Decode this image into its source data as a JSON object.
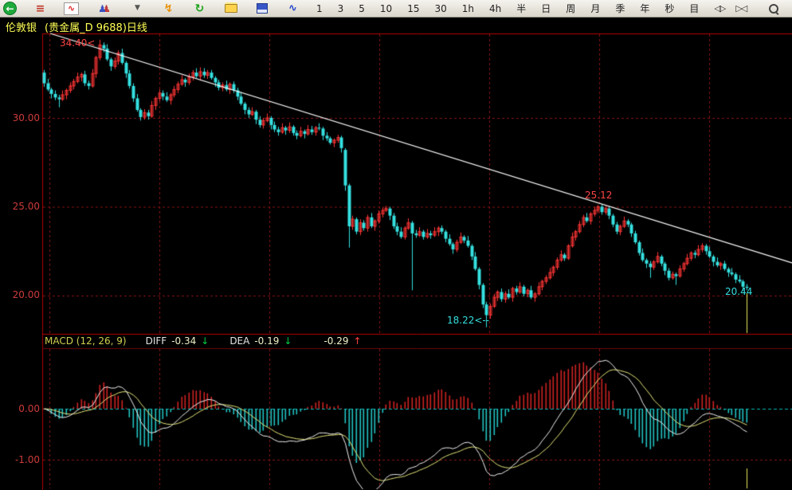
{
  "toolbar": {
    "icons": [
      {
        "name": "back-icon",
        "glyph": "←"
      },
      {
        "name": "quote-list-icon",
        "glyph": "≡"
      },
      {
        "name": "kline-chart-icon",
        "glyph": "∿"
      },
      {
        "name": "users-icon",
        "glyph": "♟"
      },
      {
        "name": "dropdown-arrow-icon",
        "glyph": "▼"
      },
      {
        "name": "lightning-icon",
        "glyph": "↯"
      },
      {
        "name": "refresh-icon",
        "glyph": "↻"
      },
      {
        "name": "open-folder-icon",
        "glyph": ""
      },
      {
        "name": "save-icon",
        "glyph": ""
      },
      {
        "name": "trendline-tool-icon",
        "glyph": "∿"
      }
    ],
    "periods": [
      "1",
      "3",
      "5",
      "10",
      "15",
      "30",
      "1h",
      "4h",
      "半",
      "日",
      "周",
      "月",
      "季",
      "年",
      "秒",
      "目"
    ],
    "nav_buttons": [
      "◁▷",
      "▷◁"
    ],
    "search_icon": "magnifier-icon"
  },
  "title_bar": {
    "symbol": "伦敦银",
    "detail": "(贵金属_D 9688)日线"
  },
  "main_chart": {
    "y_axis_labels": [
      "30.00",
      "25.00",
      "20.00"
    ],
    "markers": [
      {
        "text": "34.40<",
        "color": "#ff4545"
      },
      {
        "text": "25.12",
        "color": "#ff4545"
      },
      {
        "text": "18.22<--",
        "color": "#35dede"
      },
      {
        "text": "20.44",
        "color": "#35dede"
      }
    ]
  },
  "macd_panel": {
    "label": "MACD (12, 26, 9)",
    "diff_label": "DIFF",
    "diff_value": "-0.34",
    "diff_arrow": "↓",
    "dea_label": "DEA",
    "dea_value": "-0.19",
    "dea_arrow": "↓",
    "bar_value": "-0.29",
    "bar_arrow": "↑",
    "y_axis_labels": [
      "0.00",
      "-1.00"
    ]
  },
  "chart_data": {
    "type": "candlestick",
    "title": "伦敦银 (贵金属_D 9688) 日线",
    "price_y_ticks": [
      30,
      25,
      20
    ],
    "all_time_high": 34.4,
    "swing_high": 25.12,
    "period_low": 18.22,
    "last_price": 20.44,
    "overlays": [
      {
        "type": "trendline",
        "points": [
          [
            63,
            42
          ],
          [
            994,
            330
          ]
        ]
      }
    ],
    "indicator": {
      "name": "MACD",
      "params": [
        12,
        26,
        9
      ],
      "diff": -0.34,
      "dea": -0.19,
      "bar": -0.29,
      "y_ticks": [
        0,
        -1
      ]
    },
    "ohlc": [
      [
        32.55,
        32.7,
        31.75,
        31.95
      ],
      [
        31.95,
        32.2,
        31.5,
        31.6
      ],
      [
        31.6,
        31.7,
        31.1,
        31.35
      ],
      [
        31.35,
        31.55,
        31.0,
        31.15
      ],
      [
        31.15,
        31.3,
        30.6,
        31.05
      ],
      [
        31.05,
        31.55,
        30.95,
        31.3
      ],
      [
        31.3,
        31.65,
        31.05,
        31.55
      ],
      [
        31.55,
        32.0,
        31.4,
        31.8
      ],
      [
        31.8,
        32.2,
        31.6,
        32.05
      ],
      [
        32.05,
        32.55,
        31.95,
        32.3
      ],
      [
        32.3,
        32.55,
        32.05,
        32.45
      ],
      [
        32.45,
        32.65,
        31.8,
        31.95
      ],
      [
        31.95,
        32.1,
        31.6,
        31.8
      ],
      [
        31.8,
        32.75,
        31.7,
        32.5
      ],
      [
        32.5,
        33.5,
        32.25,
        33.4
      ],
      [
        33.4,
        34.4,
        33.25,
        34.1
      ],
      [
        34.1,
        34.25,
        33.7,
        33.9
      ],
      [
        33.9,
        34.15,
        33.2,
        33.3
      ],
      [
        33.3,
        33.4,
        32.65,
        32.9
      ],
      [
        32.9,
        33.4,
        32.75,
        33.2
      ],
      [
        33.2,
        33.8,
        33.0,
        33.65
      ],
      [
        33.65,
        33.9,
        33.0,
        33.1
      ],
      [
        33.1,
        33.2,
        32.25,
        32.5
      ],
      [
        32.5,
        32.7,
        31.65,
        31.8
      ],
      [
        31.8,
        31.95,
        30.9,
        31.1
      ],
      [
        31.1,
        31.35,
        30.35,
        30.45
      ],
      [
        30.45,
        30.55,
        29.85,
        30.05
      ],
      [
        30.05,
        30.5,
        29.9,
        30.3
      ],
      [
        30.3,
        30.45,
        29.9,
        30.1
      ],
      [
        30.1,
        30.95,
        30.0,
        30.7
      ],
      [
        30.7,
        31.2,
        30.45,
        31.1
      ],
      [
        31.1,
        31.6,
        30.95,
        31.4
      ],
      [
        31.4,
        31.55,
        31.0,
        31.2
      ],
      [
        31.2,
        31.45,
        30.9,
        31.0
      ],
      [
        31.0,
        31.4,
        30.75,
        31.3
      ],
      [
        31.3,
        31.8,
        31.15,
        31.6
      ],
      [
        31.6,
        32.05,
        31.4,
        31.9
      ],
      [
        31.9,
        32.4,
        31.8,
        32.15
      ],
      [
        32.15,
        32.25,
        31.75,
        32.0
      ],
      [
        32.0,
        32.5,
        31.85,
        32.3
      ],
      [
        32.3,
        32.7,
        32.1,
        32.55
      ],
      [
        32.55,
        32.8,
        32.25,
        32.35
      ],
      [
        32.35,
        32.85,
        32.1,
        32.6
      ],
      [
        32.6,
        32.8,
        32.25,
        32.4
      ],
      [
        32.4,
        32.7,
        32.2,
        32.55
      ],
      [
        32.55,
        32.7,
        32.15,
        32.25
      ],
      [
        32.25,
        32.35,
        31.75,
        32.0
      ],
      [
        32.0,
        32.15,
        31.55,
        31.7
      ],
      [
        31.7,
        32.0,
        31.5,
        31.85
      ],
      [
        31.85,
        32.1,
        31.5,
        31.6
      ],
      [
        31.6,
        32.0,
        31.35,
        31.9
      ],
      [
        31.9,
        32.05,
        31.4,
        31.55
      ],
      [
        31.55,
        31.7,
        31.0,
        31.2
      ],
      [
        31.2,
        31.45,
        30.7,
        30.8
      ],
      [
        30.8,
        30.9,
        30.2,
        30.45
      ],
      [
        30.45,
        30.6,
        30.0,
        30.2
      ],
      [
        30.2,
        30.6,
        30.1,
        30.35
      ],
      [
        30.35,
        30.45,
        29.65,
        29.9
      ],
      [
        29.9,
        30.1,
        29.45,
        29.6
      ],
      [
        29.6,
        30.0,
        29.4,
        29.85
      ],
      [
        29.85,
        30.25,
        29.75,
        30.0
      ],
      [
        30.0,
        30.1,
        29.35,
        29.6
      ],
      [
        29.6,
        29.8,
        29.2,
        29.35
      ],
      [
        29.35,
        29.5,
        29.0,
        29.2
      ],
      [
        29.2,
        29.7,
        29.1,
        29.45
      ],
      [
        29.45,
        29.55,
        29.05,
        29.3
      ],
      [
        29.3,
        29.75,
        29.15,
        29.5
      ],
      [
        29.5,
        29.6,
        29.0,
        29.15
      ],
      [
        29.15,
        29.3,
        28.8,
        29.0
      ],
      [
        29.0,
        29.5,
        28.9,
        29.25
      ],
      [
        29.25,
        29.35,
        28.85,
        29.1
      ],
      [
        29.1,
        29.6,
        29.0,
        29.35
      ],
      [
        29.35,
        29.55,
        29.05,
        29.2
      ],
      [
        29.2,
        29.55,
        29.0,
        29.45
      ],
      [
        29.45,
        29.7,
        29.3,
        29.4
      ],
      [
        29.4,
        29.5,
        28.75,
        29.0
      ],
      [
        29.0,
        29.2,
        28.7,
        28.85
      ],
      [
        28.85,
        28.95,
        28.5,
        28.6
      ],
      [
        28.6,
        28.85,
        28.35,
        28.75
      ],
      [
        28.75,
        29.05,
        28.6,
        28.9
      ],
      [
        28.9,
        29.0,
        28.05,
        28.3
      ],
      [
        28.2,
        28.3,
        25.9,
        26.2
      ],
      [
        26.2,
        26.3,
        22.7,
        23.9
      ],
      [
        23.9,
        24.5,
        23.7,
        24.3
      ],
      [
        24.3,
        24.4,
        23.45,
        23.6
      ],
      [
        23.6,
        24.3,
        23.4,
        24.1
      ],
      [
        24.1,
        24.25,
        23.65,
        23.8
      ],
      [
        23.8,
        24.55,
        23.6,
        24.4
      ],
      [
        24.4,
        24.65,
        23.8,
        23.9
      ],
      [
        23.9,
        24.3,
        23.65,
        24.2
      ],
      [
        24.2,
        24.8,
        24.05,
        24.6
      ],
      [
        24.6,
        24.95,
        24.4,
        24.8
      ],
      [
        24.8,
        25.05,
        24.7,
        24.9
      ],
      [
        24.9,
        25.0,
        24.25,
        24.5
      ],
      [
        24.5,
        24.65,
        23.75,
        23.9
      ],
      [
        23.9,
        24.1,
        23.4,
        23.6
      ],
      [
        23.6,
        23.85,
        23.2,
        23.3
      ],
      [
        23.3,
        23.9,
        23.15,
        23.8
      ],
      [
        23.8,
        24.35,
        23.7,
        24.1
      ],
      [
        24.1,
        24.2,
        20.3,
        23.5
      ],
      [
        23.5,
        23.7,
        23.25,
        23.4
      ],
      [
        23.4,
        23.85,
        23.3,
        23.6
      ],
      [
        23.6,
        23.7,
        23.15,
        23.3
      ],
      [
        23.3,
        23.75,
        23.2,
        23.5
      ],
      [
        23.5,
        23.65,
        23.2,
        23.4
      ],
      [
        23.4,
        23.85,
        23.3,
        23.6
      ],
      [
        23.6,
        23.9,
        23.35,
        23.8
      ],
      [
        23.8,
        23.95,
        23.45,
        23.6
      ],
      [
        23.6,
        23.7,
        23.0,
        23.2
      ],
      [
        23.2,
        23.45,
        22.8,
        22.9
      ],
      [
        22.9,
        23.0,
        22.35,
        22.6
      ],
      [
        22.6,
        23.15,
        22.45,
        23.0
      ],
      [
        23.0,
        23.55,
        22.9,
        23.3
      ],
      [
        23.3,
        23.4,
        22.95,
        23.1
      ],
      [
        23.1,
        23.35,
        22.7,
        22.8
      ],
      [
        22.8,
        22.9,
        22.0,
        22.2
      ],
      [
        22.2,
        22.45,
        21.4,
        21.5
      ],
      [
        21.5,
        21.6,
        20.35,
        20.6
      ],
      [
        20.6,
        20.7,
        19.3,
        19.5
      ],
      [
        19.5,
        19.65,
        18.22,
        18.9
      ],
      [
        18.9,
        19.55,
        18.7,
        19.4
      ],
      [
        19.4,
        20.1,
        19.3,
        19.9
      ],
      [
        19.9,
        20.3,
        19.7,
        20.2
      ],
      [
        20.2,
        20.4,
        19.65,
        19.8
      ],
      [
        19.8,
        20.25,
        19.6,
        20.1
      ],
      [
        20.1,
        20.35,
        19.8,
        19.9
      ],
      [
        19.9,
        20.5,
        19.65,
        20.4
      ],
      [
        20.4,
        20.55,
        20.05,
        20.2
      ],
      [
        20.2,
        20.75,
        20.1,
        20.5
      ],
      [
        20.5,
        20.6,
        19.95,
        20.1
      ],
      [
        20.1,
        20.4,
        19.9,
        20.3
      ],
      [
        20.3,
        20.55,
        19.8,
        19.9
      ],
      [
        19.9,
        20.2,
        19.65,
        20.1
      ],
      [
        20.1,
        20.75,
        20.0,
        20.5
      ],
      [
        20.5,
        20.9,
        20.3,
        20.8
      ],
      [
        20.8,
        21.15,
        20.65,
        21.0
      ],
      [
        21.0,
        21.55,
        20.9,
        21.3
      ],
      [
        21.3,
        21.7,
        21.1,
        21.6
      ],
      [
        21.6,
        22.15,
        21.45,
        22.0
      ],
      [
        22.0,
        22.55,
        21.9,
        22.3
      ],
      [
        22.3,
        22.4,
        21.95,
        22.1
      ],
      [
        22.1,
        22.9,
        22.0,
        22.8
      ],
      [
        22.8,
        23.55,
        22.7,
        23.3
      ],
      [
        23.3,
        23.7,
        23.1,
        23.6
      ],
      [
        23.6,
        24.2,
        23.5,
        24.0
      ],
      [
        24.0,
        24.55,
        23.85,
        24.4
      ],
      [
        24.4,
        24.65,
        24.1,
        24.2
      ],
      [
        24.2,
        24.7,
        24.0,
        24.6
      ],
      [
        24.6,
        25.0,
        24.45,
        24.8
      ],
      [
        24.8,
        25.1,
        24.65,
        25.0
      ],
      [
        25.0,
        25.12,
        24.55,
        24.7
      ],
      [
        24.7,
        25.05,
        24.55,
        24.9
      ],
      [
        24.9,
        25.0,
        24.3,
        24.5
      ],
      [
        24.5,
        24.6,
        23.85,
        24.0
      ],
      [
        24.0,
        24.15,
        23.45,
        23.6
      ],
      [
        23.6,
        24.0,
        23.4,
        23.9
      ],
      [
        23.9,
        24.45,
        23.8,
        24.2
      ],
      [
        24.2,
        24.3,
        23.85,
        24.0
      ],
      [
        24.0,
        24.1,
        23.3,
        23.5
      ],
      [
        23.5,
        23.65,
        22.9,
        23.0
      ],
      [
        23.0,
        23.1,
        22.25,
        22.4
      ],
      [
        22.4,
        22.65,
        21.9,
        22.0
      ],
      [
        22.0,
        22.1,
        21.55,
        21.8
      ],
      [
        21.8,
        21.95,
        21.0,
        21.6
      ],
      [
        21.6,
        22.0,
        21.45,
        21.9
      ],
      [
        21.9,
        22.45,
        21.8,
        22.2
      ],
      [
        22.2,
        22.3,
        21.65,
        21.8
      ],
      [
        21.8,
        21.9,
        21.15,
        21.4
      ],
      [
        21.4,
        21.55,
        20.85,
        21.0
      ],
      [
        21.0,
        21.35,
        20.9,
        21.2
      ],
      [
        21.2,
        21.3,
        20.6,
        21.1
      ],
      [
        21.1,
        21.7,
        21.0,
        21.5
      ],
      [
        21.5,
        21.9,
        21.35,
        21.8
      ],
      [
        21.8,
        22.35,
        21.7,
        22.1
      ],
      [
        22.1,
        22.5,
        21.95,
        22.4
      ],
      [
        22.4,
        22.55,
        22.1,
        22.3
      ],
      [
        22.3,
        22.85,
        22.2,
        22.6
      ],
      [
        22.6,
        22.95,
        22.45,
        22.8
      ],
      [
        22.8,
        22.9,
        22.3,
        22.5
      ],
      [
        22.5,
        22.75,
        22.1,
        22.2
      ],
      [
        22.2,
        22.3,
        21.65,
        21.9
      ],
      [
        21.9,
        22.15,
        21.6,
        21.7
      ],
      [
        21.7,
        21.9,
        21.45,
        21.8
      ],
      [
        21.8,
        21.95,
        21.4,
        21.5
      ],
      [
        21.5,
        21.6,
        21.05,
        21.3
      ],
      [
        21.3,
        21.55,
        21.1,
        21.2
      ],
      [
        21.2,
        21.3,
        20.7,
        20.9
      ],
      [
        20.9,
        21.15,
        20.7,
        20.8
      ],
      [
        20.8,
        20.9,
        20.25,
        20.5
      ],
      [
        20.5,
        20.65,
        20.3,
        20.44
      ]
    ]
  }
}
